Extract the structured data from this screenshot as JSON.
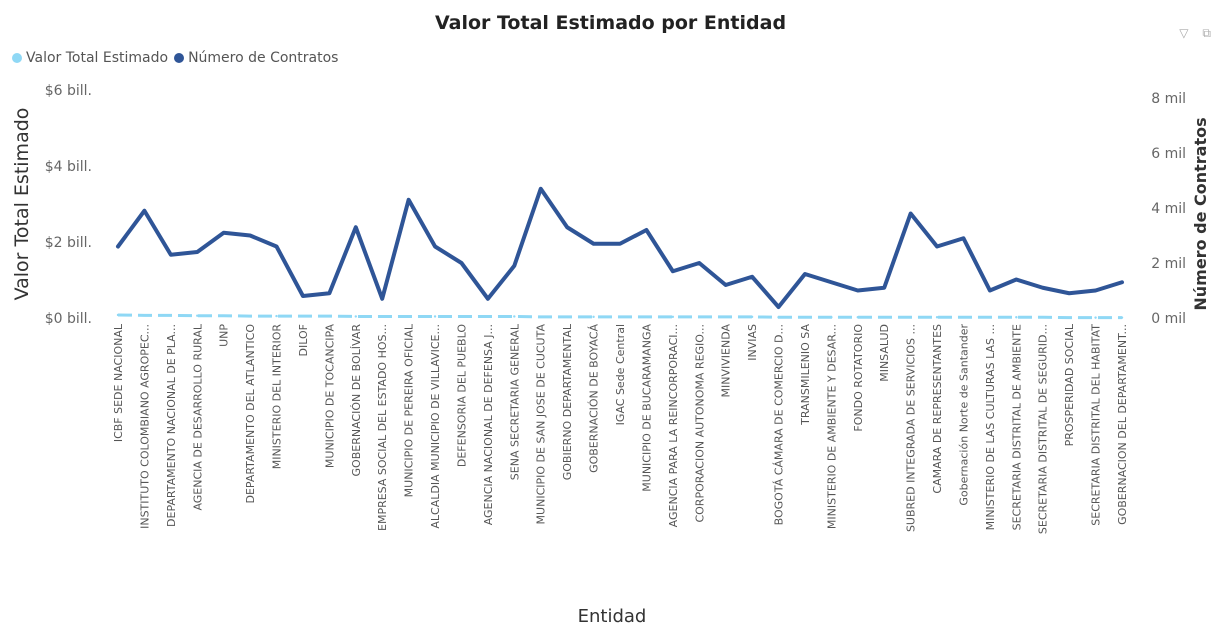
{
  "header": {
    "filter_icon": "filter-icon",
    "focus_icon": "focus-mode-icon"
  },
  "chart_data": {
    "type": "line",
    "title": "Valor Total Estimado por Entidad",
    "xlabel": "Entidad",
    "ylabel": "Valor Total Estimado",
    "y2label": "Número de Contratos",
    "legend_position": "top-left",
    "grid": false,
    "ylim": [
      0,
      6
    ],
    "yticks": [
      {
        "value": 0,
        "label": "$0 bill."
      },
      {
        "value": 2,
        "label": "$2 bill."
      },
      {
        "value": 4,
        "label": "$4 bill."
      },
      {
        "value": 6,
        "label": "$6 bill."
      }
    ],
    "y2lim": [
      0,
      8
    ],
    "y2ticks": [
      {
        "value": 0,
        "label": "0 mil"
      },
      {
        "value": 2,
        "label": "2 mil"
      },
      {
        "value": 4,
        "label": "4 mil"
      },
      {
        "value": 6,
        "label": "6 mil"
      },
      {
        "value": 8,
        "label": "8 mil"
      }
    ],
    "categories": [
      "ICBF SEDE NACIONAL",
      "INSTITUTO COLOMBIANO AGROPEC...",
      "DEPARTAMENTO NACIONAL DE PLA...",
      "AGENCIA DE DESARROLLO RURAL",
      "UNP",
      "DEPARTAMENTO DEL ATLANTICO",
      "MINISTERIO DEL INTERIOR",
      "DILOF",
      "MUNICIPIO DE TOCANCIPA",
      "GOBERNACIÓN DE BOLÍVAR",
      "EMPRESA SOCIAL DEL ESTADO HOS...",
      "MUNICIPIO DE PEREIRA OFICIAL",
      "ALCALDIA MUNICIPIO DE VILLAVICE...",
      "DEFENSORIA DEL PUEBLO",
      "AGENCIA NACIONAL DE DEFENSA J...",
      "SENA SECRETARIA GENERAL",
      "MUNICIPIO DE SAN JOSE DE CUCUTA",
      "GOBIERNO DEPARTAMENTAL",
      "GOBERNACIÓN DE BOYACÁ",
      "IGAC Sede Central",
      "MUNICIPIO DE BUCARAMANGA",
      "AGENCIA PARA LA REINCORPORACI...",
      "CORPORACION AUTONOMA REGIO...",
      "MINVIVIENDA",
      "INVIAS",
      "BOGOTÁ CÁMARA DE COMERCIO D...",
      "TRANSMILENIO SA",
      "MINISTERIO DE AMBIENTE Y DESAR...",
      "FONDO ROTATORIO",
      "MINSALUD",
      "SUBRED INTEGRADA DE SERVICIOS ...",
      "CAMARA DE REPRESENTANTES",
      "Gobernación Norte de Santander",
      "MINISTERIO DE LAS CULTURAS LAS ...",
      "SECRETARIA DISTRITAL DE AMBIENTE",
      "SECRETARIA DISTRITAL DE SEGURID...",
      "PROSPERIDAD SOCIAL",
      "SECRETARIA DISTRITAL DEL HABITAT",
      "GOBERNACION DEL DEPARTAMENT..."
    ],
    "series": [
      {
        "name": "Valor Total Estimado",
        "axis": "left",
        "color": "#8fd8f5",
        "values": [
          0.08,
          0.07,
          0.07,
          0.06,
          0.06,
          0.05,
          0.05,
          0.05,
          0.05,
          0.04,
          0.04,
          0.04,
          0.04,
          0.04,
          0.04,
          0.04,
          0.03,
          0.03,
          0.03,
          0.03,
          0.03,
          0.03,
          0.03,
          0.03,
          0.03,
          0.02,
          0.02,
          0.02,
          0.02,
          0.02,
          0.02,
          0.02,
          0.02,
          0.02,
          0.02,
          0.02,
          0.01,
          0.01,
          0.01
        ]
      },
      {
        "name": "Número de Contratos",
        "axis": "right",
        "color": "#2f5597",
        "values": [
          2.6,
          3.9,
          2.3,
          2.4,
          3.1,
          3.0,
          2.6,
          0.8,
          0.9,
          3.3,
          0.7,
          4.3,
          2.6,
          2.0,
          0.7,
          1.9,
          4.7,
          3.3,
          2.7,
          2.7,
          3.2,
          1.7,
          2.0,
          1.2,
          1.5,
          0.4,
          1.6,
          1.3,
          1.0,
          1.1,
          3.8,
          2.6,
          2.9,
          1.0,
          1.4,
          1.1,
          0.9,
          1.0,
          1.3
        ]
      }
    ]
  }
}
